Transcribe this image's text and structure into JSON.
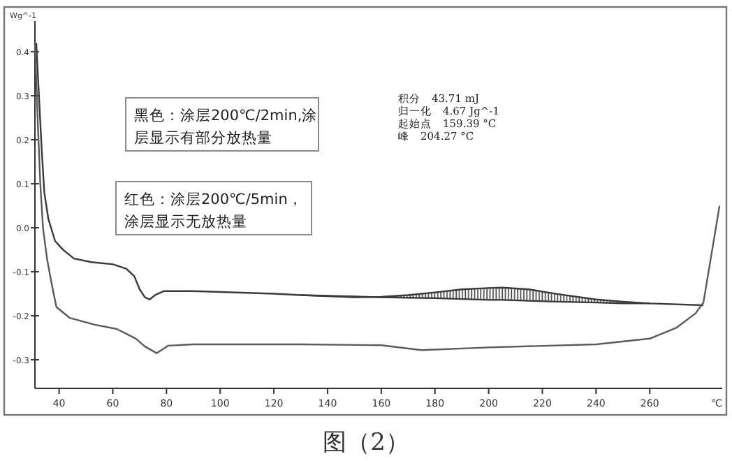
{
  "chart_data": {
    "type": "line",
    "xlabel": "℃",
    "ylabel": "Wg^-1",
    "xlim": [
      31,
      287
    ],
    "ylim": [
      -0.365,
      0.47
    ],
    "xticks": [
      40,
      60,
      80,
      100,
      120,
      140,
      160,
      180,
      200,
      220,
      240,
      260
    ],
    "yticks": [
      {
        "value": 0.4,
        "label": "0.4"
      },
      {
        "value": 0.3,
        "label": "0.3"
      },
      {
        "value": 0.2,
        "label": "0.2"
      },
      {
        "value": 0.1,
        "label": "0.1"
      },
      {
        "value": 0,
        "label": "0.0"
      },
      {
        "value": -0.1,
        "label": "-0.1"
      },
      {
        "value": -0.2,
        "label": "-0.2"
      },
      {
        "value": -0.3,
        "label": "-0.3"
      }
    ],
    "series": [
      {
        "color": "#3a3a3a",
        "x": [
          31.5,
          32.5,
          33.5,
          34.5,
          36,
          38.5,
          41.5,
          45.5,
          52,
          60,
          65,
          68,
          70,
          72,
          73.7,
          76,
          79,
          90,
          100,
          120,
          130,
          150,
          160,
          170,
          180,
          190,
          200,
          205,
          215,
          225,
          240,
          250,
          260,
          280
        ],
        "values": [
          0.42,
          0.3,
          0.18,
          0.08,
          0.02,
          -0.03,
          -0.05,
          -0.07,
          -0.078,
          -0.083,
          -0.093,
          -0.11,
          -0.14,
          -0.158,
          -0.163,
          -0.152,
          -0.144,
          -0.144,
          -0.146,
          -0.15,
          -0.153,
          -0.158,
          -0.157,
          -0.153,
          -0.147,
          -0.14,
          -0.137,
          -0.136,
          -0.14,
          -0.15,
          -0.163,
          -0.168,
          -0.172,
          -0.176
        ]
      },
      {
        "color": "#5a5a5a",
        "x": [
          31,
          32,
          33,
          34,
          35.5,
          37,
          39,
          44,
          53,
          61.5,
          68.6,
          72,
          76.4,
          80.6,
          90,
          100,
          130,
          160,
          175,
          200,
          240,
          260,
          270,
          277,
          280,
          283,
          286
        ],
        "values": [
          0.42,
          0.25,
          0.1,
          0.0,
          -0.07,
          -0.12,
          -0.18,
          -0.205,
          -0.22,
          -0.23,
          -0.252,
          -0.27,
          -0.285,
          -0.268,
          -0.265,
          -0.265,
          -0.265,
          -0.267,
          -0.278,
          -0.272,
          -0.265,
          -0.252,
          -0.227,
          -0.195,
          -0.17,
          -0.06,
          0.05
        ]
      },
      {
        "color": "#3a3a3a",
        "x": [
          130,
          150,
          160,
          170,
          180,
          190,
          200,
          205,
          215,
          225,
          240,
          250,
          260
        ],
        "values": [
          -0.153,
          -0.156,
          -0.158,
          -0.159,
          -0.16,
          -0.162,
          -0.164,
          -0.164,
          -0.166,
          -0.168,
          -0.17,
          -0.172,
          -0.172
        ],
        "lower": [
          -0.153,
          -0.156,
          -0.158,
          -0.159,
          -0.16,
          -0.162,
          -0.164,
          -0.164,
          -0.166,
          -0.168,
          -0.17,
          -0.172,
          -0.172
        ],
        "upper": [
          -0.153,
          -0.158,
          -0.157,
          -0.153,
          -0.147,
          -0.14,
          -0.137,
          -0.136,
          -0.14,
          -0.15,
          -0.163,
          -0.168,
          -0.172
        ]
      }
    ],
    "annotations": [
      "黑色：涂层200℃/2min,涂层显示有部分放热量",
      "红色：涂层200℃/5min，涂层显示无放热量",
      "积分　43.71 mJ",
      "归一化　4.67 Jg^-1",
      "起始点　159.39 °C",
      "峰　204.27 °C",
      "图（2）"
    ]
  }
}
